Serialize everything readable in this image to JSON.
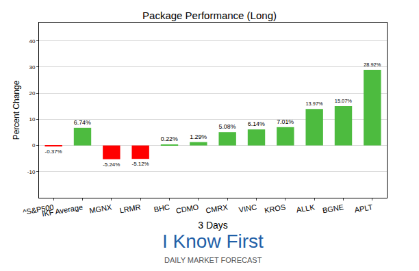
{
  "chart_data": {
    "type": "bar",
    "title": "Package Performance (Long)",
    "x_label": "3 Days",
    "y_label": "Percent Change",
    "categories": [
      "^S&P500",
      "IKF Average",
      "MGNX",
      "LRMR",
      "BHC",
      "CDMO",
      "CMRX",
      "VINC",
      "KROS",
      "ALLK",
      "BGNE",
      "APLT"
    ],
    "values": [
      -0.37,
      6.74,
      -5.24,
      -5.12,
      0.22,
      1.29,
      5.08,
      6.14,
      7.01,
      13.97,
      15.07,
      28.92
    ],
    "value_labels": [
      "-0.37%",
      "6.74%",
      "-5.24%",
      "-5.12%",
      "0.22%",
      "1.29%",
      "5.08%",
      "6.14%",
      "7.01%",
      "13.97%",
      "15.07%",
      "28.92%"
    ],
    "colors": [
      "#ff0000",
      "#4dbb3f",
      "#ff0000",
      "#ff0000",
      "#4dbb3f",
      "#4dbb3f",
      "#4dbb3f",
      "#4dbb3f",
      "#4dbb3f",
      "#4dbb3f",
      "#4dbb3f",
      "#4dbb3f"
    ],
    "data_labels": true,
    "ylim": [
      -20,
      47
    ],
    "yticks": [
      -10,
      0,
      10,
      20,
      30,
      40
    ],
    "grid": true,
    "annotations": [
      "I Know First",
      "DAILY MARKET FORECAST"
    ]
  }
}
